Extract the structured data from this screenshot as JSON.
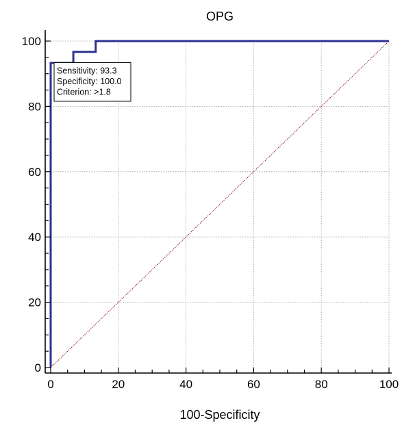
{
  "chart_data": {
    "type": "line",
    "title": "OPG",
    "xlabel": "100-Specificity",
    "ylabel": "",
    "xlim": [
      0,
      100
    ],
    "ylim": [
      0,
      100
    ],
    "x_ticks": [
      "0",
      "20",
      "40",
      "60",
      "80",
      "100"
    ],
    "y_ticks": [
      "0",
      "20",
      "40",
      "60",
      "80",
      "100"
    ],
    "grid": true,
    "series": [
      {
        "name": "",
        "style": "step",
        "color": "#2e3192",
        "points": [
          [
            0,
            0
          ],
          [
            0,
            93.3
          ],
          [
            6.7,
            93.3
          ],
          [
            6.7,
            96.7
          ],
          [
            13.3,
            96.7
          ],
          [
            13.3,
            100
          ],
          [
            100,
            100
          ]
        ]
      },
      {
        "name": "",
        "style": "dotted",
        "color": "#8b1a1a",
        "points": [
          [
            0,
            0
          ],
          [
            100,
            100
          ]
        ]
      }
    ],
    "annotation": {
      "lines": [
        "Sensitivity: 93.3",
        "Specificity: 100.0",
        "Criterion: >1.8"
      ],
      "anchor": [
        0,
        93.3
      ]
    }
  }
}
